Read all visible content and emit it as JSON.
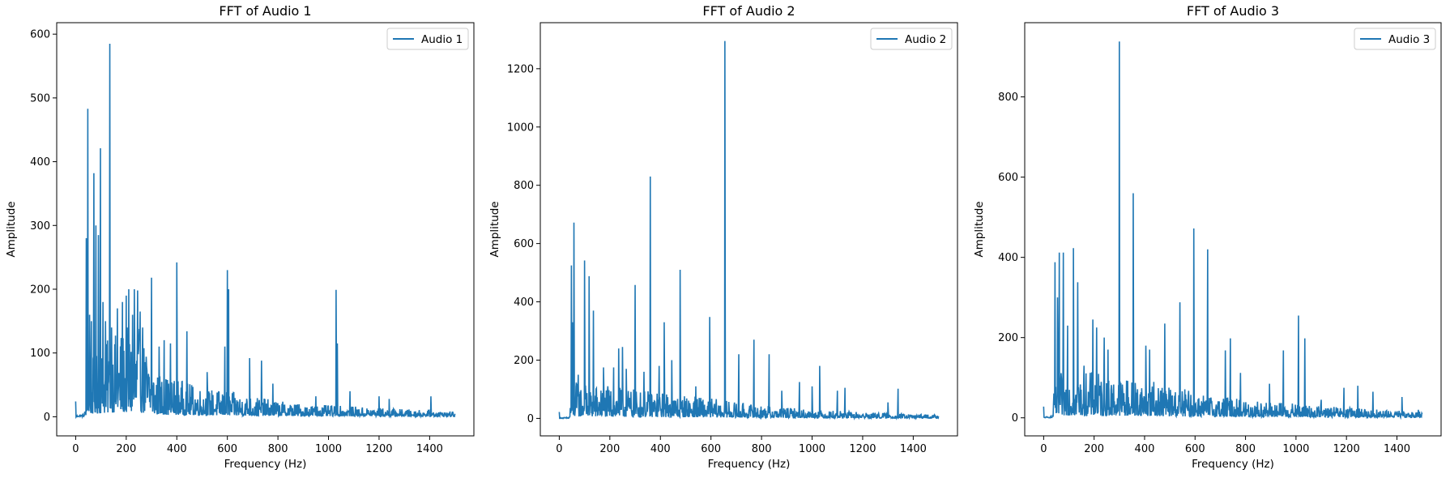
{
  "chart_data": [
    {
      "type": "line",
      "title": "FFT of Audio 1",
      "xlabel": "Frequency (Hz)",
      "ylabel": "Amplitude",
      "xlim": [
        -75,
        1575
      ],
      "ylim": [
        -30,
        618
      ],
      "xticks": [
        0,
        200,
        400,
        600,
        800,
        1000,
        1200,
        1400
      ],
      "yticks": [
        0,
        100,
        200,
        300,
        400,
        500,
        600
      ],
      "legend": "top-right",
      "color": "#1f77b4",
      "series": [
        {
          "name": "Audio 1",
          "peaks": [
            [
              0,
              24
            ],
            [
              42,
              280
            ],
            [
              48,
              483
            ],
            [
              55,
              160
            ],
            [
              62,
              150
            ],
            [
              72,
              382
            ],
            [
              80,
              300
            ],
            [
              90,
              285
            ],
            [
              98,
              421
            ],
            [
              108,
              180
            ],
            [
              118,
              150
            ],
            [
              135,
              585
            ],
            [
              142,
              140
            ],
            [
              165,
              170
            ],
            [
              185,
              180
            ],
            [
              200,
              190
            ],
            [
              210,
              200
            ],
            [
              225,
              160
            ],
            [
              232,
              200
            ],
            [
              245,
              198
            ],
            [
              255,
              165
            ],
            [
              265,
              140
            ],
            [
              300,
              218
            ],
            [
              330,
              110
            ],
            [
              350,
              120
            ],
            [
              375,
              115
            ],
            [
              400,
              242
            ],
            [
              440,
              134
            ],
            [
              520,
              70
            ],
            [
              590,
              110
            ],
            [
              600,
              230
            ],
            [
              605,
              200
            ],
            [
              688,
              92
            ],
            [
              735,
              88
            ],
            [
              780,
              52
            ],
            [
              950,
              32
            ],
            [
              1030,
              199
            ],
            [
              1035,
              115
            ],
            [
              1085,
              40
            ],
            [
              1200,
              32
            ],
            [
              1240,
              28
            ],
            [
              1405,
              32
            ]
          ],
          "envelope": [
            [
              0,
              2
            ],
            [
              35,
              5
            ],
            [
              40,
              30
            ],
            [
              60,
              90
            ],
            [
              100,
              110
            ],
            [
              150,
              130
            ],
            [
              200,
              140
            ],
            [
              250,
              140
            ],
            [
              280,
              110
            ],
            [
              320,
              70
            ],
            [
              400,
              60
            ],
            [
              500,
              45
            ],
            [
              600,
              40
            ],
            [
              700,
              32
            ],
            [
              800,
              25
            ],
            [
              900,
              20
            ],
            [
              1000,
              18
            ],
            [
              1100,
              16
            ],
            [
              1200,
              14
            ],
            [
              1300,
              12
            ],
            [
              1400,
              10
            ],
            [
              1500,
              8
            ]
          ]
        }
      ]
    },
    {
      "type": "line",
      "title": "FFT of Audio 2",
      "xlabel": "Frequency (Hz)",
      "ylabel": "Amplitude",
      "xlim": [
        -75,
        1575
      ],
      "ylim": [
        -60,
        1358
      ],
      "xticks": [
        0,
        200,
        400,
        600,
        800,
        1000,
        1200,
        1400
      ],
      "yticks": [
        0,
        200,
        400,
        600,
        800,
        1000,
        1200
      ],
      "legend": "top-right",
      "color": "#1f77b4",
      "series": [
        {
          "name": "Audio 2",
          "peaks": [
            [
              0,
              22
            ],
            [
              48,
              525
            ],
            [
              52,
              330
            ],
            [
              58,
              672
            ],
            [
              75,
              150
            ],
            [
              100,
              542
            ],
            [
              118,
              488
            ],
            [
              135,
              370
            ],
            [
              175,
              175
            ],
            [
              215,
              175
            ],
            [
              235,
              240
            ],
            [
              250,
              245
            ],
            [
              265,
              170
            ],
            [
              300,
              458
            ],
            [
              335,
              160
            ],
            [
              360,
              830
            ],
            [
              395,
              180
            ],
            [
              415,
              330
            ],
            [
              445,
              200
            ],
            [
              478,
              510
            ],
            [
              540,
              110
            ],
            [
              595,
              348
            ],
            [
              655,
              1295
            ],
            [
              710,
              220
            ],
            [
              770,
              270
            ],
            [
              830,
              220
            ],
            [
              880,
              95
            ],
            [
              950,
              125
            ],
            [
              1000,
              110
            ],
            [
              1030,
              180
            ],
            [
              1100,
              95
            ],
            [
              1130,
              105
            ],
            [
              1300,
              55
            ],
            [
              1340,
              102
            ]
          ],
          "envelope": [
            [
              0,
              2
            ],
            [
              40,
              5
            ],
            [
              45,
              80
            ],
            [
              60,
              130
            ],
            [
              100,
              120
            ],
            [
              200,
              110
            ],
            [
              300,
              100
            ],
            [
              400,
              90
            ],
            [
              500,
              80
            ],
            [
              600,
              70
            ],
            [
              700,
              55
            ],
            [
              800,
              45
            ],
            [
              900,
              38
            ],
            [
              1000,
              30
            ],
            [
              1100,
              26
            ],
            [
              1200,
              22
            ],
            [
              1300,
              18
            ],
            [
              1400,
              15
            ],
            [
              1500,
              12
            ]
          ]
        }
      ]
    },
    {
      "type": "line",
      "title": "FFT of Audio 3",
      "xlabel": "Frequency (Hz)",
      "ylabel": "Amplitude",
      "xlim": [
        -75,
        1575
      ],
      "ylim": [
        -45,
        985
      ],
      "xticks": [
        0,
        200,
        400,
        600,
        800,
        1000,
        1200,
        1400
      ],
      "yticks": [
        0,
        200,
        400,
        600,
        800
      ],
      "legend": "top-right",
      "color": "#1f77b4",
      "series": [
        {
          "name": "Audio 3",
          "peaks": [
            [
              0,
              28
            ],
            [
              45,
              388
            ],
            [
              55,
              300
            ],
            [
              62,
              412
            ],
            [
              78,
              412
            ],
            [
              95,
              230
            ],
            [
              118,
              423
            ],
            [
              135,
              338
            ],
            [
              160,
              130
            ],
            [
              195,
              245
            ],
            [
              210,
              225
            ],
            [
              240,
              200
            ],
            [
              255,
              170
            ],
            [
              300,
              938
            ],
            [
              355,
              560
            ],
            [
              405,
              180
            ],
            [
              420,
              170
            ],
            [
              480,
              235
            ],
            [
              540,
              288
            ],
            [
              595,
              472
            ],
            [
              650,
              420
            ],
            [
              720,
              168
            ],
            [
              740,
              198
            ],
            [
              780,
              112
            ],
            [
              895,
              85
            ],
            [
              950,
              168
            ],
            [
              1010,
              255
            ],
            [
              1035,
              198
            ],
            [
              1100,
              45
            ],
            [
              1190,
              75
            ],
            [
              1245,
              80
            ],
            [
              1305,
              65
            ],
            [
              1420,
              52
            ],
            [
              1485,
              20
            ]
          ],
          "envelope": [
            [
              0,
              2
            ],
            [
              35,
              5
            ],
            [
              40,
              60
            ],
            [
              60,
              110
            ],
            [
              100,
              120
            ],
            [
              200,
              115
            ],
            [
              300,
              105
            ],
            [
              400,
              95
            ],
            [
              500,
              80
            ],
            [
              600,
              65
            ],
            [
              700,
              55
            ],
            [
              800,
              45
            ],
            [
              900,
              40
            ],
            [
              1000,
              35
            ],
            [
              1100,
              30
            ],
            [
              1200,
              26
            ],
            [
              1300,
              22
            ],
            [
              1400,
              18
            ],
            [
              1500,
              14
            ]
          ]
        }
      ]
    }
  ]
}
